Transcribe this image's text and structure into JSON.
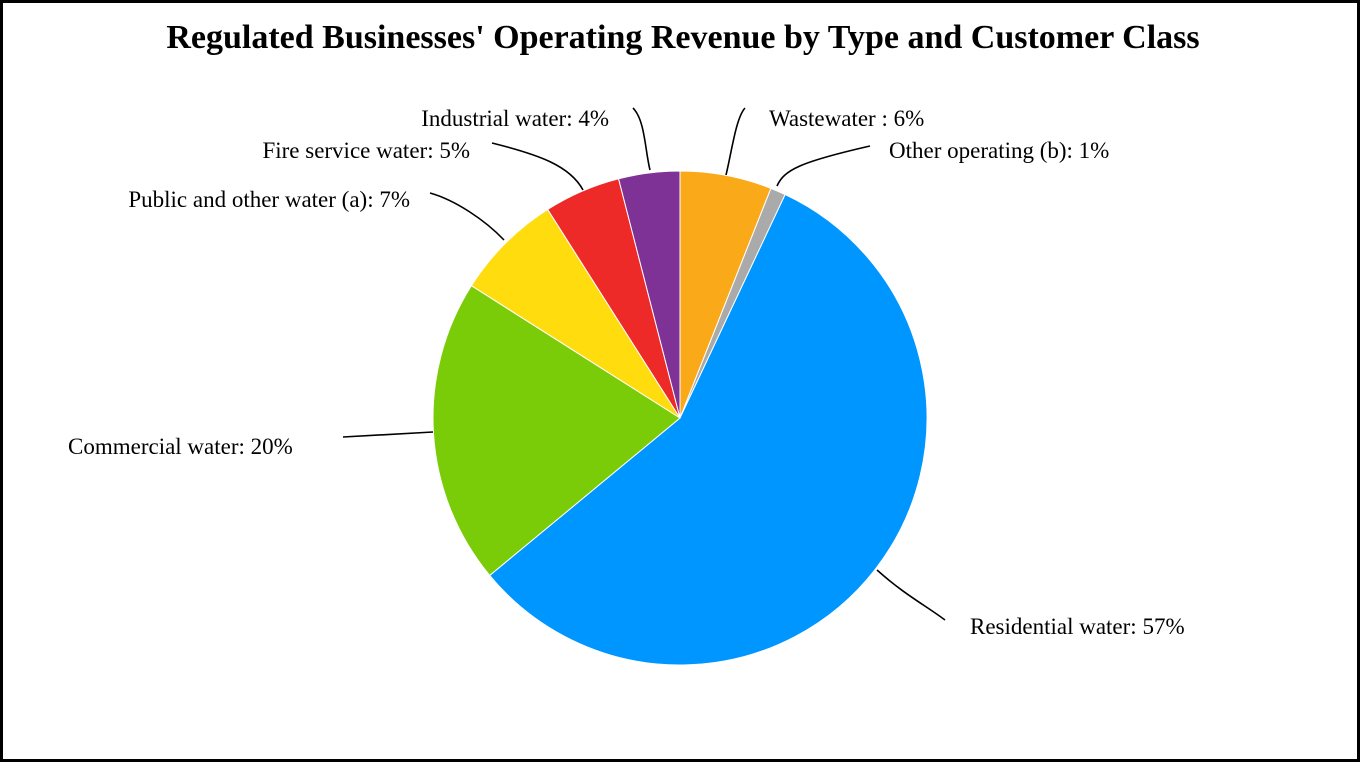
{
  "chart_data": {
    "type": "pie",
    "title": "Regulated Businesses' Operating Revenue by Type and Customer Class",
    "slices": [
      {
        "label": "Wastewater : 6%",
        "value": 6,
        "color": "#FAA919"
      },
      {
        "label": "Other operating (b): 1%",
        "value": 1,
        "color": "#AAAAAA"
      },
      {
        "label": "Residential water: 57%",
        "value": 57,
        "color": "#0096FF"
      },
      {
        "label": "Commercial water: 20%",
        "value": 20,
        "color": "#7ACC08"
      },
      {
        "label": "Public and other water (a): 7%",
        "value": 7,
        "color": "#FEDC0E"
      },
      {
        "label": "Fire service water: 5%",
        "value": 5,
        "color": "#EE2A28"
      },
      {
        "label": "Industrial water: 4%",
        "value": 4,
        "color": "#7E3296"
      }
    ],
    "legend": "none",
    "start": "12 o'clock, clockwise"
  }
}
